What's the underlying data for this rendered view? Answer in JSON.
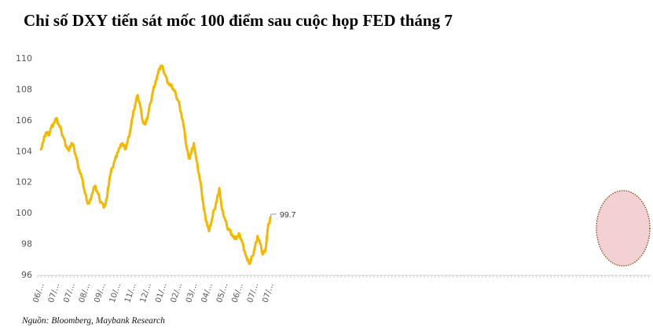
{
  "title": "Chỉ số DXY tiến sát mốc 100 điểm sau cuộc họp FED tháng 7",
  "source": "Nguồn: Bloomberg, Maybank Research",
  "colors": {
    "line": "#F5B800",
    "axis": "#D0D0D0",
    "highlight_fill": "#F2D0D3",
    "highlight_stroke": "#8B4513"
  },
  "chart_data": {
    "type": "line",
    "title": "Chỉ số DXY tiến sát mốc 100 điểm sau cuộc họp FED tháng 7",
    "ylim": [
      96,
      110
    ],
    "yticks": [
      96,
      98,
      100,
      102,
      104,
      106,
      108,
      110
    ],
    "grid": false,
    "x_tick_labels": [
      "06/...",
      "07/...",
      "07/...",
      "08/...",
      "09/...",
      "10/...",
      "11/...",
      "12/...",
      "01/...",
      "02/...",
      "03/...",
      "04/...",
      "05/...",
      "06/...",
      "07/...",
      "07/..."
    ],
    "series": [
      {
        "values": [
          104.1,
          104.6,
          105.2,
          105.0,
          105.5,
          105.8,
          106.1,
          105.7,
          105.3,
          104.8,
          104.3,
          104.0,
          104.5,
          104.2,
          103.5,
          102.8,
          102.3,
          101.5,
          100.8,
          100.6,
          101.2,
          101.7,
          101.4,
          100.9,
          100.6,
          100.4,
          101.0,
          102.3,
          102.9,
          103.4,
          103.9,
          104.2,
          104.5,
          104.1,
          104.6,
          105.3,
          106.2,
          107.0,
          107.6,
          106.9,
          105.9,
          105.7,
          106.3,
          107.1,
          107.9,
          108.5,
          109.0,
          109.5,
          109.3,
          108.8,
          108.4,
          108.2,
          108.0,
          107.6,
          107.2,
          106.5,
          105.6,
          104.4,
          103.5,
          103.9,
          104.5,
          103.4,
          102.5,
          101.5,
          100.2,
          99.4,
          98.8,
          99.5,
          100.2,
          100.8,
          101.6,
          100.2,
          99.7,
          99.1,
          98.9,
          98.6,
          98.3,
          98.4,
          98.6,
          98.1,
          97.5,
          96.9,
          96.7,
          97.2,
          97.8,
          98.5,
          98.0,
          97.3,
          97.5,
          99.0,
          99.7
        ],
        "color": "#F5B800"
      }
    ],
    "annotations": [
      {
        "text": "99.7",
        "y": 99.7
      }
    ]
  }
}
